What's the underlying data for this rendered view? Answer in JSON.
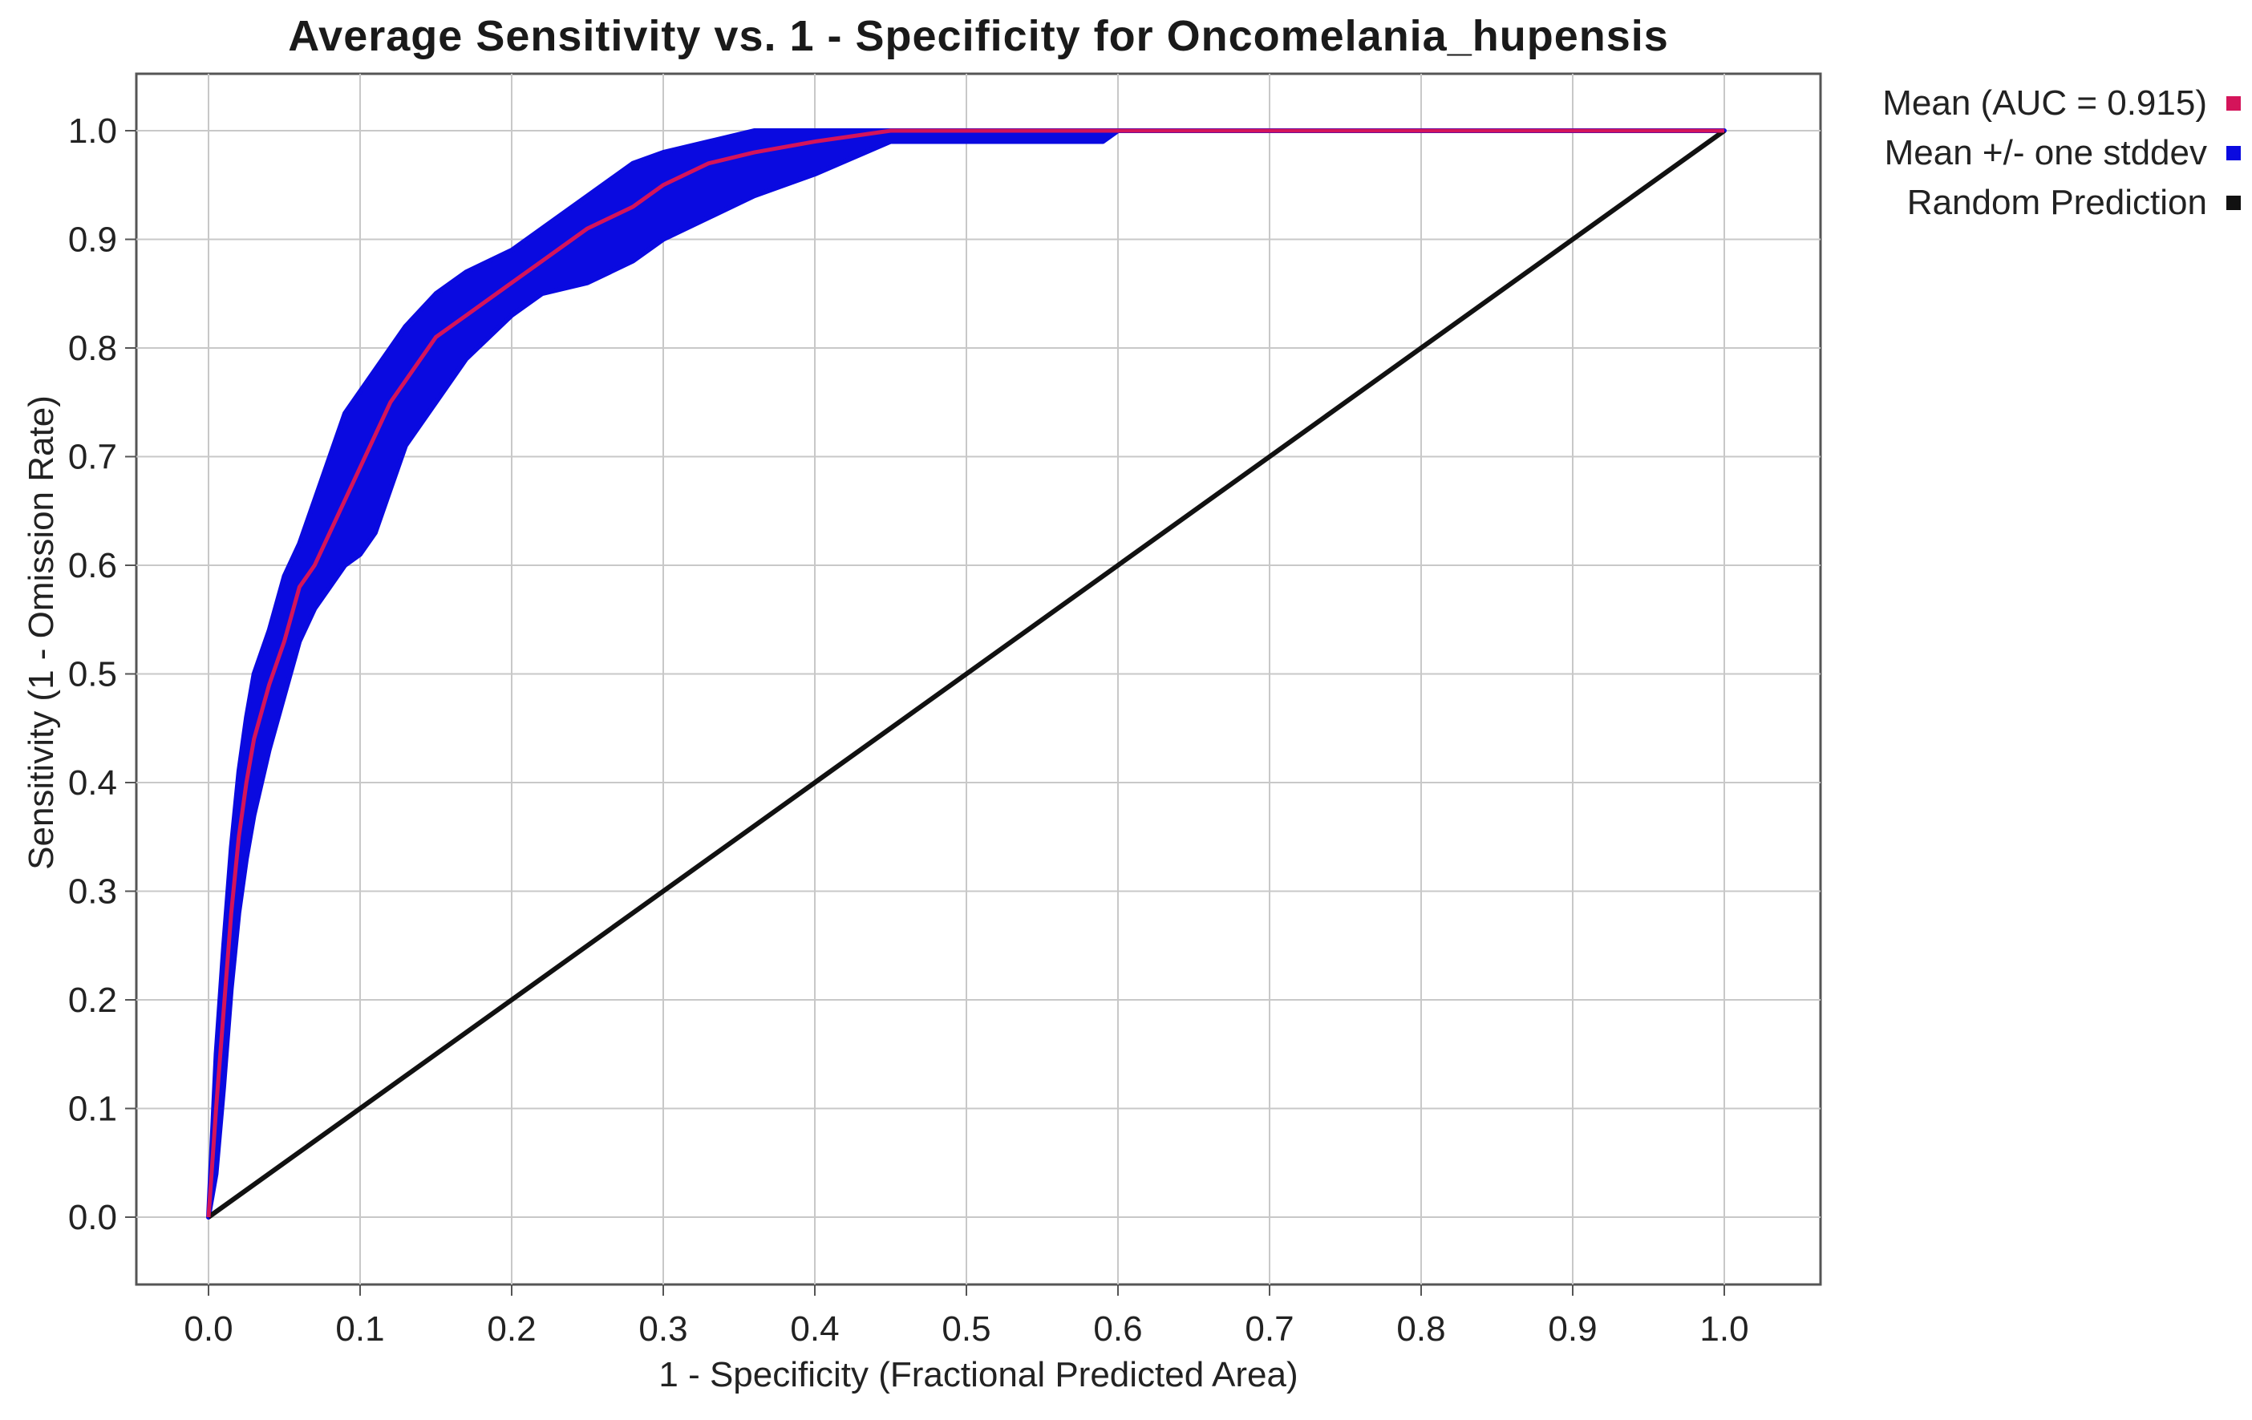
{
  "chart_data": {
    "type": "line",
    "title": "Average Sensitivity vs. 1 - Specificity for Oncomelania_hupensis",
    "xlabel": "1 - Specificity (Fractional Predicted Area)",
    "ylabel": "Sensitivity (1 - Omission Rate)",
    "xlim": [
      0,
      1
    ],
    "ylim": [
      0,
      1
    ],
    "x_ticks": [
      "0.0",
      "0.1",
      "0.2",
      "0.3",
      "0.4",
      "0.5",
      "0.6",
      "0.7",
      "0.8",
      "0.9",
      "1.0"
    ],
    "y_ticks": [
      "0.0",
      "0.1",
      "0.2",
      "0.3",
      "0.4",
      "0.5",
      "0.6",
      "0.7",
      "0.8",
      "0.9",
      "1.0"
    ],
    "grid": true,
    "legend_position": "right",
    "series": [
      {
        "name": "Mean (AUC = 0.915)",
        "color": "#d4145a",
        "x": [
          0,
          0.005,
          0.01,
          0.015,
          0.02,
          0.025,
          0.03,
          0.04,
          0.05,
          0.06,
          0.07,
          0.08,
          0.09,
          0.1,
          0.11,
          0.12,
          0.13,
          0.15,
          0.17,
          0.2,
          0.22,
          0.25,
          0.28,
          0.3,
          0.33,
          0.36,
          0.4,
          0.45,
          0.5,
          0.6,
          0.7,
          0.8,
          0.9,
          1.0
        ],
        "y": [
          0,
          0.1,
          0.19,
          0.28,
          0.35,
          0.4,
          0.44,
          0.49,
          0.53,
          0.58,
          0.6,
          0.63,
          0.66,
          0.69,
          0.72,
          0.75,
          0.77,
          0.81,
          0.83,
          0.86,
          0.88,
          0.91,
          0.93,
          0.95,
          0.97,
          0.98,
          0.99,
          1.0,
          1.0,
          1.0,
          1.0,
          1.0,
          1.0,
          1.0
        ]
      },
      {
        "name": "Mean +/- one stddev",
        "color": "#0a0ae0",
        "x": [
          0,
          0.005,
          0.01,
          0.015,
          0.02,
          0.025,
          0.03,
          0.04,
          0.05,
          0.06,
          0.07,
          0.08,
          0.09,
          0.1,
          0.11,
          0.12,
          0.13,
          0.15,
          0.17,
          0.2,
          0.22,
          0.25,
          0.28,
          0.3,
          0.33,
          0.36,
          0.4,
          0.45,
          0.5,
          0.59,
          0.6,
          1.0
        ],
        "y_upper": [
          0,
          0.15,
          0.25,
          0.34,
          0.41,
          0.46,
          0.5,
          0.54,
          0.59,
          0.62,
          0.66,
          0.7,
          0.74,
          0.76,
          0.78,
          0.8,
          0.82,
          0.85,
          0.87,
          0.89,
          0.91,
          0.94,
          0.97,
          0.98,
          0.99,
          1.0,
          1.0,
          1.0,
          1.0,
          1.0,
          1.0,
          1.0
        ],
        "y_lower": [
          0,
          0.04,
          0.12,
          0.21,
          0.28,
          0.33,
          0.37,
          0.43,
          0.48,
          0.53,
          0.56,
          0.58,
          0.6,
          0.61,
          0.63,
          0.67,
          0.71,
          0.75,
          0.79,
          0.83,
          0.85,
          0.86,
          0.88,
          0.9,
          0.92,
          0.94,
          0.96,
          0.99,
          0.99,
          0.99,
          1.0,
          1.0
        ]
      },
      {
        "name": "Random Prediction",
        "color": "#111111",
        "x": [
          0,
          1
        ],
        "y": [
          0,
          1
        ]
      }
    ]
  }
}
